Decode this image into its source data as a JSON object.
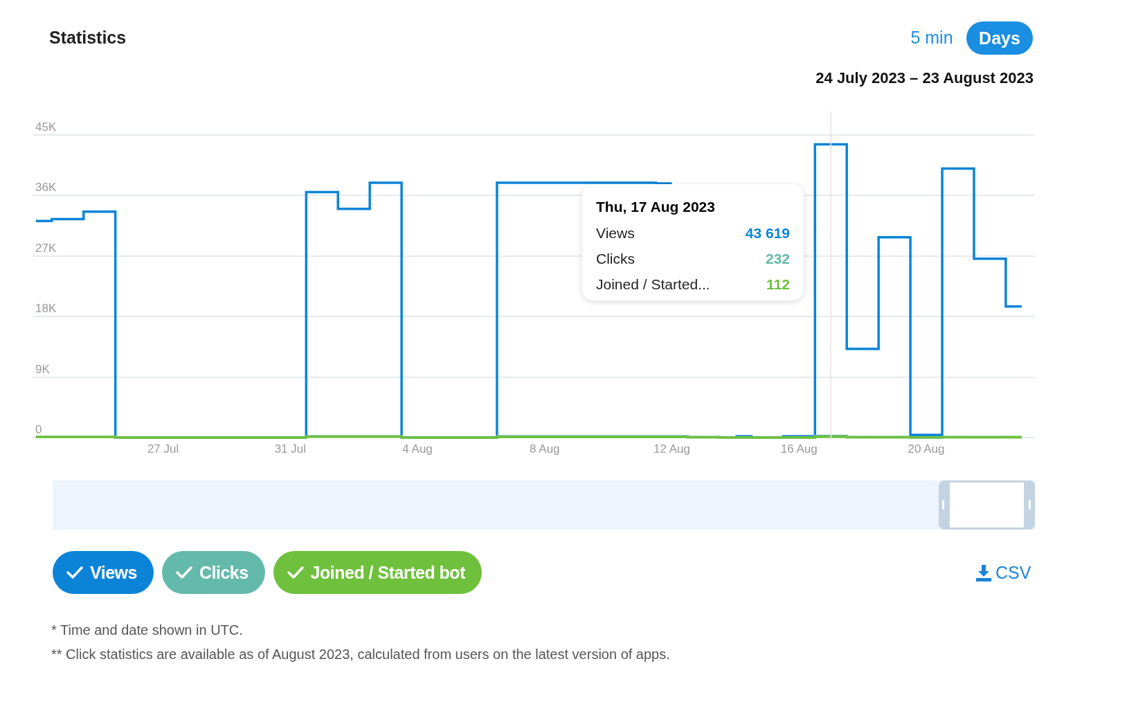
{
  "chart_data": {
    "type": "step",
    "title": "Statistics",
    "subtitle": "24 July 2023 – 23 August 2023",
    "x": [
      "2023-07-23",
      "2023-07-24",
      "2023-07-25",
      "2023-07-26",
      "2023-07-27",
      "2023-07-28",
      "2023-07-29",
      "2023-07-30",
      "2023-07-31",
      "2023-08-01",
      "2023-08-02",
      "2023-08-03",
      "2023-08-04",
      "2023-08-05",
      "2023-08-06",
      "2023-08-07",
      "2023-08-08",
      "2023-08-09",
      "2023-08-10",
      "2023-08-11",
      "2023-08-12",
      "2023-08-13",
      "2023-08-14",
      "2023-08-15",
      "2023-08-16",
      "2023-08-17",
      "2023-08-18",
      "2023-08-19",
      "2023-08-20",
      "2023-08-21",
      "2023-08-22",
      "2023-08-23"
    ],
    "series": [
      {
        "name": "Views",
        "color": "#0b84d8",
        "values": [
          32200,
          32500,
          33600,
          0,
          0,
          0,
          0,
          0,
          0,
          36500,
          34000,
          37900,
          0,
          0,
          0,
          37900,
          37900,
          37900,
          37900,
          37900,
          37800,
          null,
          200,
          0,
          200,
          43619,
          13200,
          29800,
          400,
          40000,
          26600,
          19500
        ]
      },
      {
        "name": "Clicks",
        "color": "#64baaa",
        "values": [
          100,
          100,
          100,
          0,
          0,
          0,
          0,
          0,
          0,
          200,
          200,
          200,
          0,
          0,
          0,
          200,
          200,
          200,
          200,
          200,
          200,
          100,
          0,
          0,
          0,
          232,
          100,
          100,
          0,
          100,
          100,
          100
        ]
      },
      {
        "name": "Joined / Started bot",
        "color": "#6fc03c",
        "values": [
          100,
          100,
          100,
          0,
          0,
          0,
          0,
          0,
          0,
          150,
          150,
          150,
          0,
          0,
          0,
          100,
          100,
          100,
          100,
          100,
          100,
          50,
          0,
          0,
          0,
          112,
          50,
          50,
          0,
          50,
          50,
          50
        ]
      }
    ],
    "xlim": [
      "2023-07-22T22:00",
      "2023-08-23T10:00"
    ],
    "xticks": [
      {
        "value": "2023-07-27",
        "label": "27 Jul"
      },
      {
        "value": "2023-07-31",
        "label": "31 Jul"
      },
      {
        "value": "2023-08-04",
        "label": "4 Aug"
      },
      {
        "value": "2023-08-08",
        "label": "8 Aug"
      },
      {
        "value": "2023-08-12",
        "label": "12 Aug"
      },
      {
        "value": "2023-08-16",
        "label": "16 Aug"
      },
      {
        "value": "2023-08-20",
        "label": "20 Aug"
      }
    ],
    "ylim": [
      -400,
      48500
    ],
    "yticks": [
      0,
      {
        "value": 9000,
        "label": "9K"
      },
      {
        "value": 18000,
        "label": "18K"
      },
      {
        "value": 27000,
        "label": "27K"
      },
      {
        "value": 36000,
        "label": "36K"
      },
      {
        "value": 45000,
        "label": "45K"
      }
    ],
    "grid": "y",
    "legend": "bottom",
    "ref_lines": [
      {
        "axis": "x",
        "value": "2023-08-17",
        "color": "#e3e3e3"
      }
    ],
    "annotations": [
      "5 min",
      "Days",
      "CSV",
      "* Time and date shown in UTC.",
      "** Click statistics are available as of August 2023, calculated from users on the latest version of apps.",
      "Thu, 17 Aug 2023",
      "Views",
      "Clicks",
      "Joined / Started...",
      "43 619",
      "232",
      "112"
    ]
  }
}
